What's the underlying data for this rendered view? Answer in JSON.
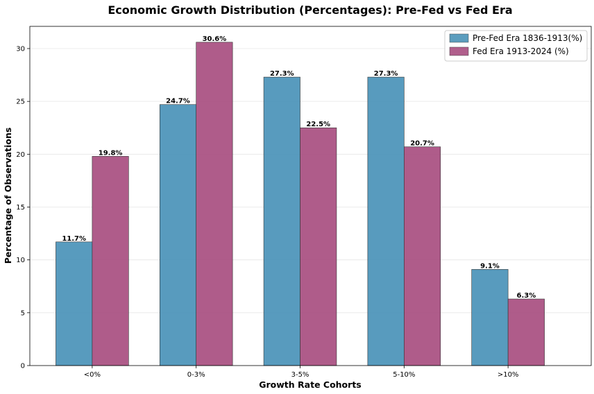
{
  "chart_data": {
    "type": "bar",
    "title": "Economic Growth Distribution (Percentages): Pre-Fed vs Fed Era",
    "xlabel": "Growth Rate Cohorts",
    "ylabel": "Percentage of Observations",
    "categories": [
      "<0%",
      "0-3%",
      "3-5%",
      "5-10%",
      ">10%"
    ],
    "series": [
      {
        "name": "Pre-Fed Era 1836-1913(%)",
        "color": "#4A93B8",
        "values": [
          11.7,
          24.7,
          27.3,
          27.3,
          9.1
        ],
        "labels": [
          "11.7%",
          "24.7%",
          "27.3%",
          "27.3%",
          "9.1%"
        ]
      },
      {
        "name": "Fed Era 1913-2024 (%)",
        "color": "#A84E80",
        "values": [
          19.8,
          30.6,
          22.5,
          20.7,
          6.3
        ],
        "labels": [
          "19.8%",
          "30.6%",
          "22.5%",
          "20.7%",
          "6.3%"
        ]
      }
    ],
    "ylim": [
      0,
      32.1
    ],
    "yticks": [
      0,
      5,
      10,
      15,
      20,
      25,
      30
    ],
    "ytick_labels": [
      "0",
      "5",
      "10",
      "15",
      "20",
      "25",
      "30"
    ],
    "grid": true,
    "legend": "top-right"
  }
}
